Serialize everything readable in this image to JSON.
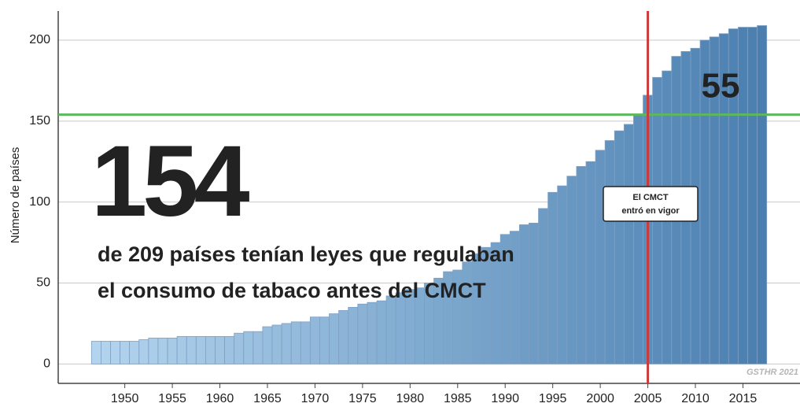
{
  "chart_data": {
    "type": "bar",
    "y_label": "Número de países",
    "x": [
      1947,
      1948,
      1949,
      1950,
      1951,
      1952,
      1953,
      1954,
      1955,
      1956,
      1957,
      1958,
      1959,
      1960,
      1961,
      1962,
      1963,
      1964,
      1965,
      1966,
      1967,
      1968,
      1969,
      1970,
      1971,
      1972,
      1973,
      1974,
      1975,
      1976,
      1977,
      1978,
      1979,
      1980,
      1981,
      1982,
      1983,
      1984,
      1985,
      1986,
      1987,
      1988,
      1989,
      1990,
      1991,
      1992,
      1993,
      1994,
      1995,
      1996,
      1997,
      1998,
      1999,
      2000,
      2001,
      2002,
      2003,
      2004,
      2005,
      2006,
      2007,
      2008,
      2009,
      2010,
      2011,
      2012,
      2013,
      2014,
      2015,
      2016,
      2017
    ],
    "values": [
      14,
      14,
      14,
      14,
      14,
      15,
      16,
      16,
      16,
      17,
      17,
      17,
      17,
      17,
      17,
      19,
      20,
      20,
      23,
      24,
      25,
      26,
      26,
      29,
      29,
      31,
      33,
      35,
      37,
      38,
      39,
      42,
      44,
      46,
      47,
      50,
      53,
      57,
      58,
      63,
      68,
      72,
      75,
      80,
      82,
      86,
      87,
      96,
      106,
      110,
      116,
      122,
      125,
      132,
      138,
      144,
      148,
      154,
      166,
      177,
      181,
      190,
      193,
      195,
      200,
      202,
      204,
      207,
      208,
      208,
      209
    ],
    "color_start": "#b3d4ee",
    "color_end": "#4a7fb0",
    "xlim": [
      1943,
      2021
    ],
    "ylim": [
      -12,
      218
    ],
    "xticks": [
      1950,
      1955,
      1960,
      1965,
      1970,
      1975,
      1980,
      1985,
      1990,
      1995,
      2000,
      2005,
      2010,
      2015
    ],
    "yticks": [
      0,
      50,
      100,
      150,
      200
    ],
    "grid": true,
    "hline": {
      "value": 154,
      "color": "#5cb85c"
    },
    "vline": {
      "value": 2005,
      "color": "#cc3b3b"
    },
    "annotations": {
      "big_number": "154",
      "line1": "de 209 países tenían leyes que regulaban",
      "line2": "el consumo de tabaco antes del CMCT",
      "after": "55",
      "box1": "El CMCT",
      "box2": "entró en vigor",
      "source": "GSTHR 2021"
    }
  }
}
